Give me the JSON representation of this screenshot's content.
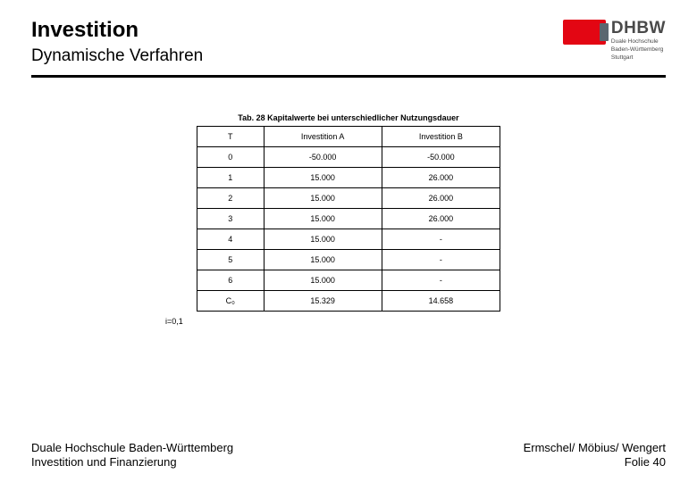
{
  "header": {
    "title": "Investition",
    "subtitle": "Dynamische Verfahren"
  },
  "logo": {
    "brand": "DHBW",
    "subline1": "Duale Hochschule",
    "subline2": "Baden-Württemberg",
    "subline3": "Stuttgart"
  },
  "table": {
    "caption": "Tab. 28 Kapitalwerte bei unterschiedlicher Nutzungsdauer",
    "columns": [
      "T",
      "Investition A",
      "Investition B"
    ],
    "rows": [
      [
        "0",
        "-50.000",
        "-50.000"
      ],
      [
        "1",
        "15.000",
        "26.000"
      ],
      [
        "2",
        "15.000",
        "26.000"
      ],
      [
        "3",
        "15.000",
        "26.000"
      ],
      [
        "4",
        "15.000",
        "-"
      ],
      [
        "5",
        "15.000",
        "-"
      ],
      [
        "6",
        "15.000",
        "-"
      ],
      [
        "C₀",
        "15.329",
        "14.658"
      ]
    ],
    "column_widths": [
      "22%",
      "39%",
      "39%"
    ],
    "border_color": "#000000",
    "font_size_pt": 9
  },
  "note": "i=0,1",
  "footer": {
    "left_line1": "Duale Hochschule Baden-Württemberg",
    "left_line2": "Investition und Finanzierung",
    "right_line1": "Ermschel/ Möbius/ Wengert",
    "right_line2": "Folie 40"
  },
  "colors": {
    "accent_red": "#e30613",
    "rule": "#000000",
    "text": "#000000",
    "background": "#ffffff",
    "logo_gray": "#5b6770"
  }
}
